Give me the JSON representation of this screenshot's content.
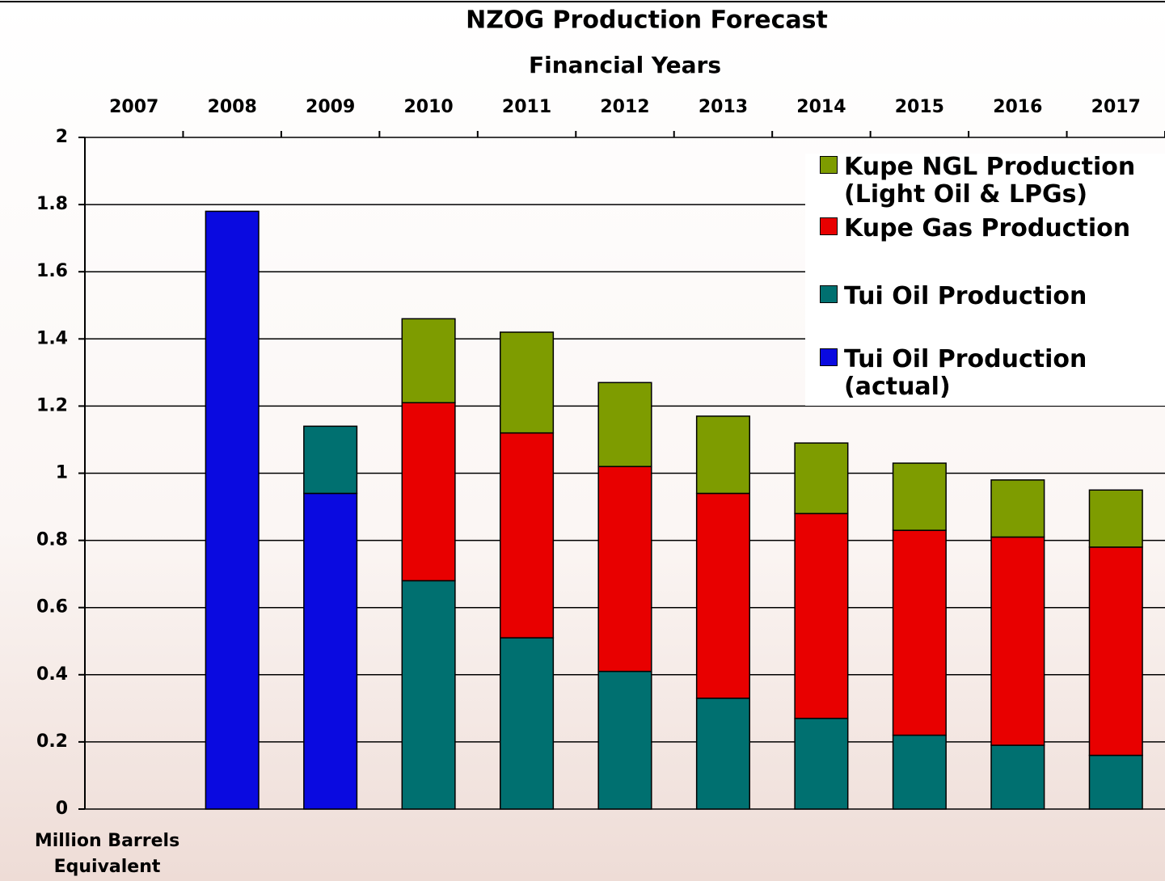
{
  "chart_data": {
    "type": "stacked_bar",
    "title": "NZOG Production Forecast",
    "x_label": "Financial Years",
    "y_label": "Million Barrels\nEquivalent",
    "categories": [
      "2007",
      "2008",
      "2009",
      "2010",
      "2011",
      "2012",
      "2013",
      "2014",
      "2015",
      "2016",
      "2017"
    ],
    "series": [
      {
        "name": "Tui Oil Production\n(actual)",
        "color": "#0a0ae0",
        "values": [
          null,
          1.78,
          0.94,
          null,
          null,
          null,
          null,
          null,
          null,
          null,
          null
        ]
      },
      {
        "name": "Tui Oil Production",
        "color": "#007070",
        "values": [
          null,
          null,
          0.2,
          0.68,
          0.51,
          0.41,
          0.33,
          0.27,
          0.22,
          0.19,
          0.16
        ]
      },
      {
        "name": "Kupe Gas Production",
        "color": "#e80000",
        "values": [
          null,
          null,
          null,
          0.53,
          0.61,
          0.61,
          0.61,
          0.61,
          0.61,
          0.62,
          0.62
        ]
      },
      {
        "name": "Kupe NGL Production\n(Light Oil & LPGs)",
        "color": "#7e9c00",
        "values": [
          null,
          null,
          null,
          0.25,
          0.3,
          0.25,
          0.23,
          0.21,
          0.2,
          0.17,
          0.17
        ]
      }
    ],
    "ylim": [
      0,
      2
    ],
    "yticks": [
      0,
      0.2,
      0.4,
      0.6,
      0.8,
      1,
      1.2,
      1.4,
      1.6,
      1.8,
      2
    ],
    "grid": true,
    "legend": "upper right"
  }
}
